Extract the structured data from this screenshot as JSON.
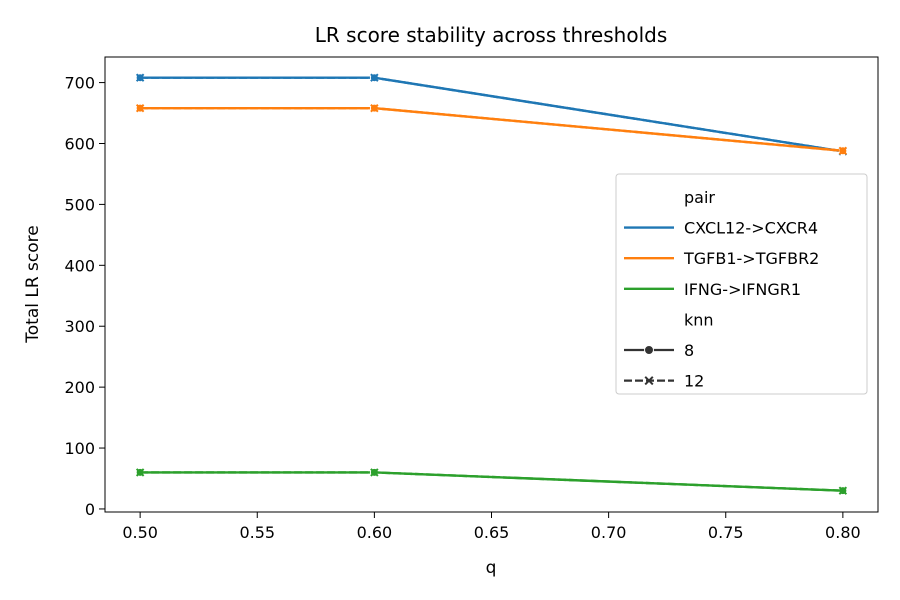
{
  "chart_data": {
    "type": "line",
    "title": "LR score stability across thresholds",
    "xlabel": "q",
    "ylabel": "Total LR score",
    "x": [
      0.5,
      0.6,
      0.8
    ],
    "xlim": [
      0.485,
      0.815
    ],
    "ylim": [
      -5,
      742
    ],
    "xticks": [
      0.5,
      0.55,
      0.6,
      0.65,
      0.7,
      0.75,
      0.8
    ],
    "xtick_labels": [
      "0.50",
      "0.55",
      "0.60",
      "0.65",
      "0.70",
      "0.75",
      "0.80"
    ],
    "yticks": [
      0,
      100,
      200,
      300,
      400,
      500,
      600,
      700
    ],
    "ytick_labels": [
      "0",
      "100",
      "200",
      "300",
      "400",
      "500",
      "600",
      "700"
    ],
    "grid": false,
    "legend_placement": "center-right",
    "legend": {
      "hue_title": "pair",
      "style_title": "knn",
      "style_entries": [
        {
          "label": "8",
          "marker": "circle",
          "dash": "solid"
        },
        {
          "label": "12",
          "marker": "x",
          "dash": "dashed"
        }
      ]
    },
    "series": [
      {
        "name": "CXCL12->CXCR4",
        "color": "#1f77b4",
        "knn": "8",
        "values": [
          708,
          708,
          587
        ]
      },
      {
        "name": "CXCL12->CXCR4",
        "color": "#1f77b4",
        "knn": "12",
        "values": [
          708,
          708,
          587
        ]
      },
      {
        "name": "TGFB1->TGFBR2",
        "color": "#ff7f0e",
        "knn": "8",
        "values": [
          658,
          658,
          588
        ]
      },
      {
        "name": "TGFB1->TGFBR2",
        "color": "#ff7f0e",
        "knn": "12",
        "values": [
          658,
          658,
          588
        ]
      },
      {
        "name": "IFNG->IFNGR1",
        "color": "#2ca02c",
        "knn": "8",
        "values": [
          60,
          60,
          30
        ]
      },
      {
        "name": "IFNG->IFNGR1",
        "color": "#2ca02c",
        "knn": "12",
        "values": [
          60,
          60,
          30
        ]
      }
    ],
    "hue_entries": [
      {
        "name": "CXCL12->CXCR4",
        "color": "#1f77b4"
      },
      {
        "name": "TGFB1->TGFBR2",
        "color": "#ff7f0e"
      },
      {
        "name": "IFNG->IFNGR1",
        "color": "#2ca02c"
      }
    ]
  }
}
